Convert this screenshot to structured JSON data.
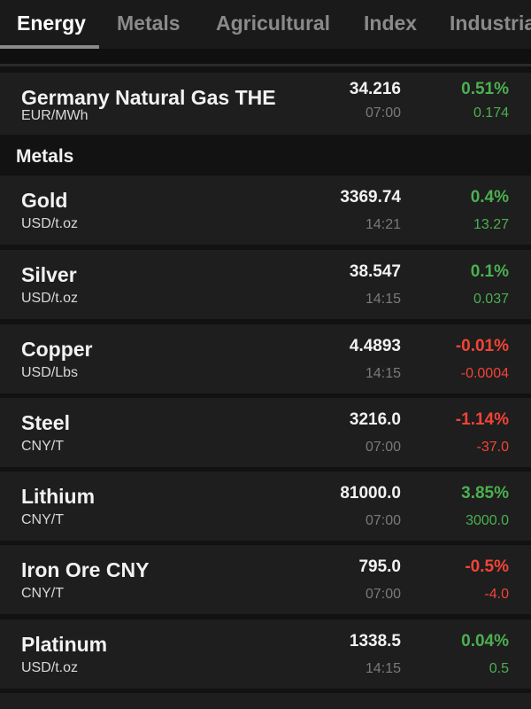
{
  "tabs": [
    "Energy",
    "Metals",
    "Agricultural",
    "Index",
    "Industrial"
  ],
  "active_tab": "Energy",
  "colors": {
    "up": "#4caf50",
    "down": "#f44336"
  },
  "energy_rows": [
    {
      "name": "Germany Natural Gas THE",
      "unit": "EUR/MWh",
      "price": "34.216",
      "time": "07:00",
      "pct": "0.51%",
      "chg": "0.174",
      "dir": "up"
    }
  ],
  "section": {
    "title": "Metals"
  },
  "metals_rows": [
    {
      "name": "Gold",
      "unit": "USD/t.oz",
      "price": "3369.74",
      "time": "14:21",
      "pct": "0.4%",
      "chg": "13.27",
      "dir": "up"
    },
    {
      "name": "Silver",
      "unit": "USD/t.oz",
      "price": "38.547",
      "time": "14:15",
      "pct": "0.1%",
      "chg": "0.037",
      "dir": "up"
    },
    {
      "name": "Copper",
      "unit": "USD/Lbs",
      "price": "4.4893",
      "time": "14:15",
      "pct": "-0.01%",
      "chg": "-0.0004",
      "dir": "down"
    },
    {
      "name": "Steel",
      "unit": "CNY/T",
      "price": "3216.0",
      "time": "07:00",
      "pct": "-1.14%",
      "chg": "-37.0",
      "dir": "down"
    },
    {
      "name": "Lithium",
      "unit": "CNY/T",
      "price": "81000.0",
      "time": "07:00",
      "pct": "3.85%",
      "chg": "3000.0",
      "dir": "up"
    },
    {
      "name": "Iron Ore CNY",
      "unit": "CNY/T",
      "price": "795.0",
      "time": "07:00",
      "pct": "-0.5%",
      "chg": "-4.0",
      "dir": "down"
    },
    {
      "name": "Platinum",
      "unit": "USD/t.oz",
      "price": "1338.5",
      "time": "14:15",
      "pct": "0.04%",
      "chg": "0.5",
      "dir": "up"
    }
  ]
}
